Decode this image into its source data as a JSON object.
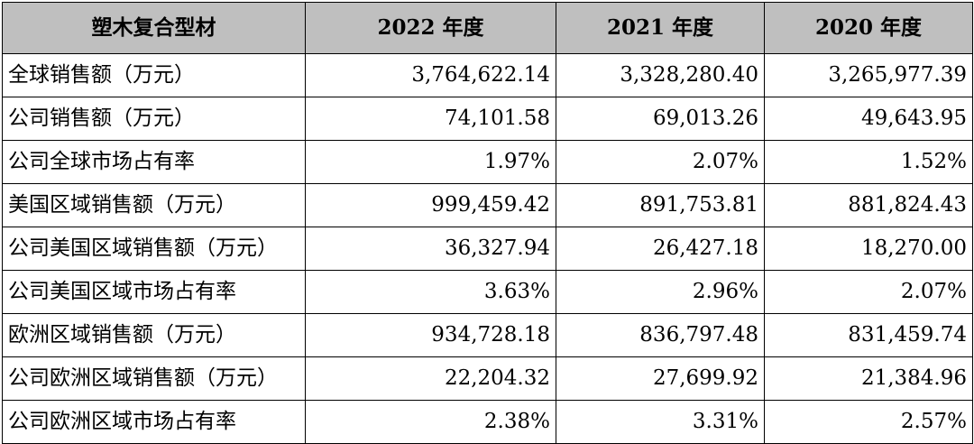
{
  "table": {
    "headers": [
      "塑木复合型材",
      "2022 年度",
      "2021 年度",
      "2020 年度"
    ],
    "rows": [
      {
        "label": "全球销售额（万元）",
        "values": [
          "3,764,622.14",
          "3,328,280.40",
          "3,265,977.39"
        ]
      },
      {
        "label": "公司销售额（万元）",
        "values": [
          "74,101.58",
          "69,013.26",
          "49,643.95"
        ]
      },
      {
        "label": "公司全球市场占有率",
        "values": [
          "1.97%",
          "2.07%",
          "1.52%"
        ]
      },
      {
        "label": "美国区域销售额（万元）",
        "values": [
          "999,459.42",
          "891,753.81",
          "881,824.43"
        ]
      },
      {
        "label": "公司美国区域销售额（万元）",
        "values": [
          "36,327.94",
          "26,427.18",
          "18,270.00"
        ]
      },
      {
        "label": "公司美国区域市场占有率",
        "values": [
          "3.63%",
          "2.96%",
          "2.07%"
        ]
      },
      {
        "label": "欧洲区域销售额（万元）",
        "values": [
          "934,728.18",
          "836,797.48",
          "831,459.74"
        ]
      },
      {
        "label": "公司欧洲区域销售额（万元）",
        "values": [
          "22,204.32",
          "27,699.92",
          "21,384.96"
        ]
      },
      {
        "label": "公司欧洲区域市场占有率",
        "values": [
          "2.38%",
          "3.31%",
          "2.57%"
        ]
      }
    ]
  },
  "colors": {
    "header_background": "#bfbfbf",
    "border": "#000000",
    "text": "#000000"
  }
}
